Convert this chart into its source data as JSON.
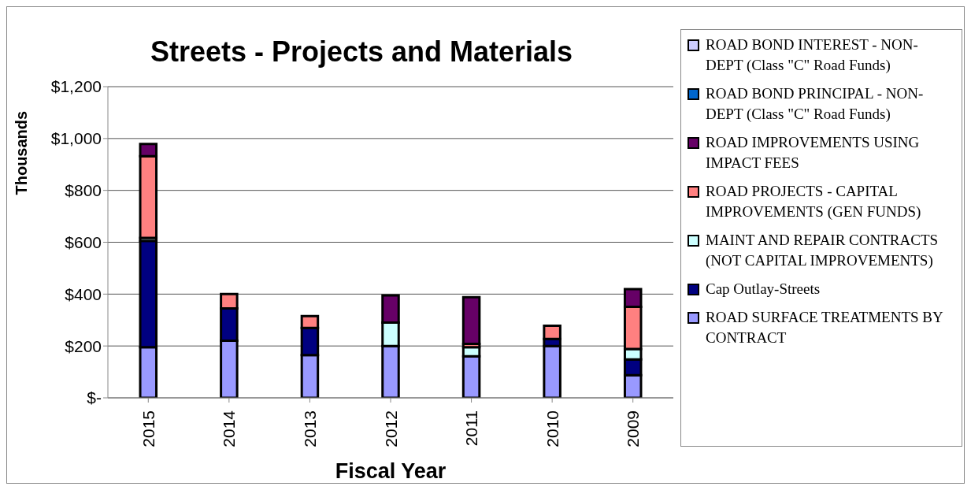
{
  "chart_data": {
    "type": "bar",
    "title": "Streets - Projects and Materials",
    "xlabel": "Fiscal Year",
    "ylabel": "Thousands",
    "categories": [
      "2015",
      "2014",
      "2013",
      "2012",
      "2011",
      "2010",
      "2009"
    ],
    "stacked": true,
    "series": [
      {
        "name": "ROAD SURFACE TREATMENTS BY CONTRACT",
        "color": "#9999ff",
        "values": [
          195,
          220,
          165,
          200,
          160,
          200,
          87
        ]
      },
      {
        "name": "Cap Outlay-Streets",
        "color": "#000080",
        "values": [
          410,
          125,
          105,
          0,
          0,
          27,
          61
        ]
      },
      {
        "name": "MAINT AND REPAIR CONTRACTS (NOT CAPITAL IMPROVEMENTS)",
        "color": "#ccffff",
        "values": [
          12,
          0,
          0,
          90,
          35,
          null,
          40
        ]
      },
      {
        "name": "ROAD PROJECTS - CAPITAL IMPROVEMENTS (GEN FUNDS)",
        "color": "#ff8080",
        "values": [
          315,
          55,
          45,
          0,
          13,
          51,
          163
        ]
      },
      {
        "name": "ROAD IMPROVEMENTS USING IMPACT FEES",
        "color": "#660066",
        "values": [
          47,
          0,
          0,
          105,
          180,
          0,
          68
        ]
      },
      {
        "name": "ROAD BOND PRINCIPAL - NON-DEPT  (Class \"C\" Road Funds)",
        "color": "#0066cc",
        "values": [
          0,
          0,
          0,
          0,
          0,
          0,
          0
        ]
      },
      {
        "name": "ROAD BOND INTEREST - NON-DEPT  (Class \"C\" Road Funds)",
        "color": "#ccccff",
        "values": [
          0,
          0,
          0,
          0,
          0,
          0,
          0
        ]
      }
    ],
    "ylim": [
      0,
      1200
    ],
    "yticks": [
      {
        "value": 0,
        "label": "$-"
      },
      {
        "value": 200,
        "label": "$200"
      },
      {
        "value": 400,
        "label": "$400"
      },
      {
        "value": 600,
        "label": "$600"
      },
      {
        "value": 800,
        "label": "$800"
      },
      {
        "value": 1000,
        "label": "$1,000"
      },
      {
        "value": 1200,
        "label": "$1,200"
      }
    ],
    "grid": "y",
    "legend": "right"
  }
}
